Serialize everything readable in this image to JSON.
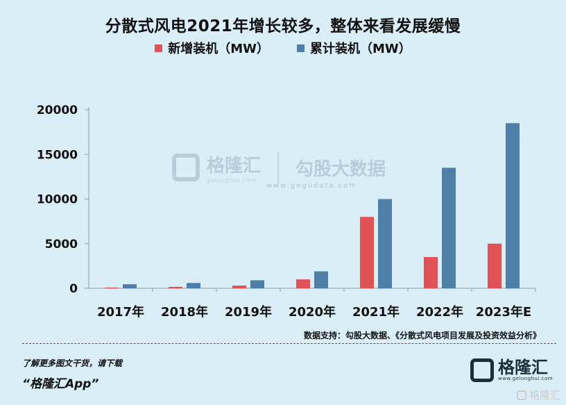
{
  "title": "分散式风电2021年增长较多，整体来看发展缓慢",
  "legend": {
    "new_label": "新增装机（MW）",
    "total_label": "累计装机（MW）"
  },
  "colors": {
    "new": "#e05256",
    "total": "#4e7fa6",
    "axis": "#999999"
  },
  "chart_data": {
    "type": "bar",
    "categories": [
      "2017年",
      "2018年",
      "2019年",
      "2020年",
      "2021年",
      "2022年",
      "2023年E"
    ],
    "series": [
      {
        "name": "新增装机（MW）",
        "values": [
          80,
          160,
          300,
          1000,
          8000,
          3500,
          5000
        ]
      },
      {
        "name": "累计装机（MW）",
        "values": [
          450,
          600,
          900,
          1900,
          10000,
          13500,
          18500
        ]
      }
    ],
    "ylim": [
      0,
      20000
    ],
    "yticks": [
      "0",
      "5000",
      "10000",
      "15000",
      "20000"
    ],
    "ytick_values": [
      0,
      5000,
      10000,
      15000,
      20000
    ],
    "grid": false,
    "legend_position": "top"
  },
  "watermark": {
    "name": "格隆汇",
    "sub": "gelonghui.com",
    "partner": "勾股大数据",
    "url": "www.gogudata.com"
  },
  "source": "数据支持：勾股大数据、《分散式风电项目发展及投资效益分析》",
  "footer": {
    "line1": "了解更多图文干货，请下载",
    "line2": "“格隆汇App”"
  },
  "brand": {
    "name": "格隆汇",
    "sub": "www.gelonghui.com"
  },
  "corner": "格隆汇"
}
